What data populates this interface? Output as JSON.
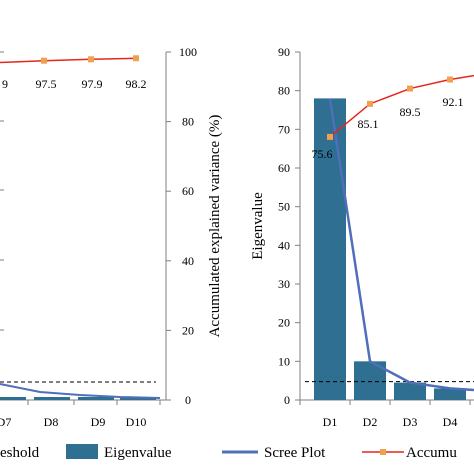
{
  "chart_data": [
    {
      "type": "line",
      "title": "",
      "x": [
        "D7",
        "D8",
        "D9",
        "D10"
      ],
      "series": [
        {
          "name": "Accumulated explained variance",
          "values": [
            null,
            97.5,
            97.9,
            98.2
          ],
          "color": "#e8251b",
          "marker_color": "#f0a050"
        },
        {
          "name": "Threshold",
          "values": [
            null,
            null,
            null,
            null
          ],
          "color": "#000000",
          "style": "dashed"
        }
      ],
      "ylabel_right": "Accumulated explained variance (%)",
      "ylim_right": [
        0,
        100
      ],
      "yticks_right": [
        "0",
        "20",
        "40",
        "60",
        "80",
        "100"
      ],
      "data_labels": [
        "9",
        "97.5",
        "97.9",
        "98.2"
      ],
      "threshold_fraction": 0.05,
      "eigen_near_zero": [
        0.8,
        0.7,
        0.6,
        0.5
      ],
      "grid": false
    },
    {
      "type": "bar",
      "title": "",
      "categories": [
        "D1",
        "D2",
        "D3",
        "D4"
      ],
      "series": [
        {
          "name": "Eigenvalue",
          "values": [
            78,
            10,
            4.5,
            3
          ],
          "color": "#2e6f92"
        },
        {
          "name": "Scree Plot",
          "type": "line",
          "values": [
            78,
            10,
            4.5,
            3
          ],
          "color": "#4f6fb8"
        },
        {
          "name": "Accumulated explained variance",
          "type": "line",
          "values": [
            75.6,
            85.1,
            89.5,
            92.1
          ],
          "right_axis": true,
          "color": "#e8251b",
          "marker_color": "#f0a050"
        }
      ],
      "ylabel": "Eigenvalue",
      "ylim": [
        0,
        90
      ],
      "yticks": [
        "0",
        "10",
        "20",
        "30",
        "40",
        "50",
        "60",
        "70",
        "80",
        "90"
      ],
      "ylim_right": [
        0,
        100
      ],
      "threshold_value": 4.5,
      "data_labels": [
        "75.6",
        "85.1",
        "89.5",
        "92.1"
      ],
      "grid": false
    }
  ],
  "legend": {
    "items": [
      {
        "label": "eshold",
        "kind": "dashed"
      },
      {
        "label": "Eigenvalue",
        "kind": "bar"
      },
      {
        "label": "Scree Plot",
        "kind": "line"
      },
      {
        "label": "Accumu",
        "kind": "line-marker"
      }
    ]
  }
}
